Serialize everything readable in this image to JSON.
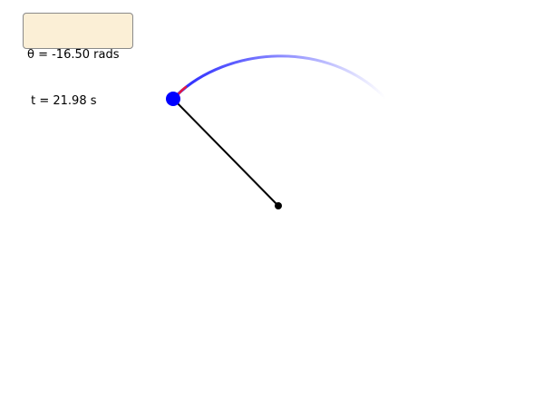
{
  "readout": {
    "theta_text": "θ = -16.50 rads",
    "time_text": " t = 21.98 s"
  },
  "pendulum": {
    "angle_rad": -16.5,
    "time_s": 21.98,
    "rod_color": "#000000",
    "bob_color": "#0000ff",
    "pivot_color": "#000000",
    "trail_color": "#0000ff",
    "trail_recent_color": "#e8193c"
  },
  "colors": {
    "readout_background": "#fbefd6",
    "readout_border": "#8a8a8a",
    "page_background": "#ffffff"
  }
}
